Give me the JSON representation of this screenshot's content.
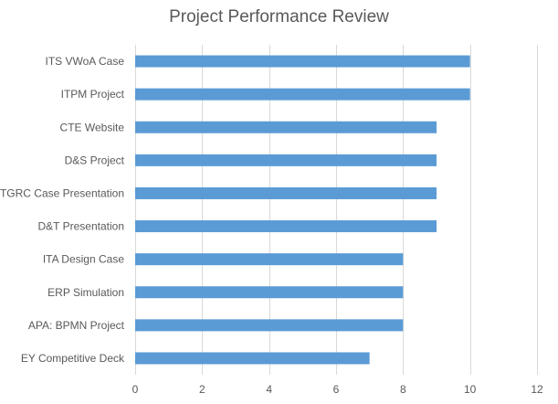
{
  "chart_data": {
    "type": "bar",
    "orientation": "horizontal",
    "title": "Project Performance Review",
    "xlabel": "",
    "ylabel": "",
    "categories": [
      "ITS VWoA Case",
      "ITPM Project",
      "CTE Website",
      "D&S Project",
      "ITGRC Case Presentation",
      "D&T Presentation",
      "ITA Design Case",
      "ERP Simulation",
      "APA: BPMN Project",
      "EY Competitive Deck"
    ],
    "values": [
      10,
      10,
      9,
      9,
      9,
      9,
      8,
      8,
      8,
      7
    ],
    "xlim": [
      0,
      12
    ],
    "xticks": [
      0,
      2,
      4,
      6,
      8,
      10,
      12
    ],
    "grid": "vertical",
    "legend": "none",
    "colors": {
      "bar": "#5B9BD5",
      "grid": "#D9D9D9",
      "text": "#595959",
      "title": "#595959"
    }
  }
}
